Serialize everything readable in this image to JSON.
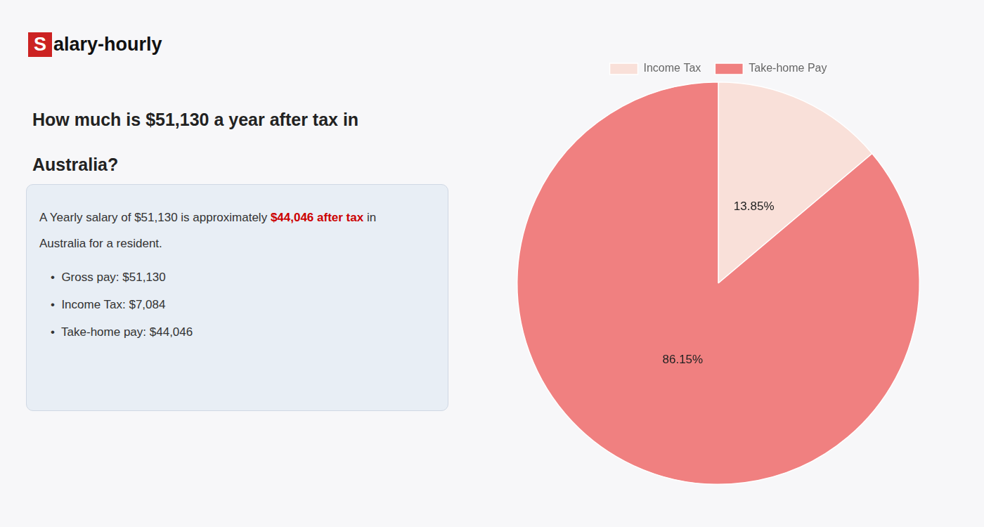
{
  "chart_data": {
    "type": "pie",
    "title": [
      "How much is $51,130 a year after tax in",
      "Australia?"
    ],
    "annotations": [
      [
        {
          "text": "S",
          "color": "#cc2222"
        },
        {
          "text": "alary-hourly"
        }
      ],
      [
        {
          "text": "A Yearly salary of $51,130 is approximately "
        },
        {
          "text": "$44,046 after tax",
          "color": "#cc0000"
        },
        {
          "text": " in"
        }
      ],
      [
        {
          "text": "Australia for a resident."
        }
      ],
      [
        {
          "text": "•  Gross pay: $51,130"
        }
      ],
      [
        {
          "text": "•  Income Tax: $7,084"
        }
      ],
      [
        {
          "text": "•  Take-home pay: $44,046"
        }
      ]
    ],
    "categories": [
      "Income Tax",
      "Take-home Pay"
    ],
    "values": [
      13.85,
      86.15
    ],
    "value_labels": [
      "13.85%",
      "86.15%"
    ],
    "colors": [
      "#f9e0d9",
      "#f08080"
    ],
    "data_labels": true,
    "legend": "top"
  }
}
